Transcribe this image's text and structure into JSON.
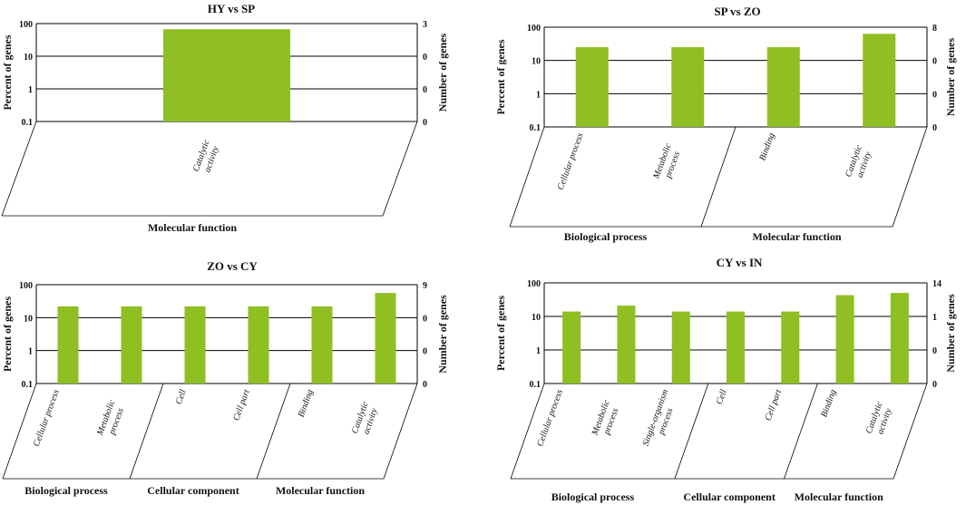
{
  "chart_data": [
    {
      "type": "bar",
      "title": "HY vs SP",
      "ylabel": "Percent of genes",
      "y2label": "Number of genes",
      "yscale": "log",
      "ylim": [
        0.1,
        100
      ],
      "yticks": [
        "100",
        "10",
        "1",
        "0.1"
      ],
      "y2ticks": [
        "3",
        "0",
        "0",
        "0"
      ],
      "grid": true,
      "categories": [
        "Catalytic activity"
      ],
      "values": [
        67
      ],
      "groups": [
        {
          "name": "Molecular function",
          "count": 1
        }
      ]
    },
    {
      "type": "bar",
      "title": "SP vs ZO",
      "ylabel": "Percent of genes",
      "y2label": "Number of genes",
      "yscale": "log",
      "ylim": [
        0.1,
        100
      ],
      "yticks": [
        "100",
        "10",
        "1",
        "0.1"
      ],
      "y2ticks": [
        "8",
        "0",
        "0",
        "0"
      ],
      "grid": true,
      "categories": [
        "Cellular process",
        "Metabolic process",
        "Binding",
        "Catalytic activity"
      ],
      "values": [
        25,
        25,
        25,
        63
      ],
      "groups": [
        {
          "name": "Biological process",
          "count": 2
        },
        {
          "name": "Molecular function",
          "count": 2
        }
      ]
    },
    {
      "type": "bar",
      "title": "ZO vs CY",
      "ylabel": "Percent of genes",
      "y2label": "Number of genes",
      "yscale": "log",
      "ylim": [
        0.1,
        100
      ],
      "yticks": [
        "100",
        "10",
        "1",
        "0.1"
      ],
      "y2ticks": [
        "9",
        "0",
        "0",
        "0"
      ],
      "grid": true,
      "categories": [
        "Cellular process",
        "Metabolic process",
        "Cell",
        "Cell part",
        "Binding",
        "Catalytic activity"
      ],
      "values": [
        22,
        22,
        22,
        22,
        22,
        56
      ],
      "groups": [
        {
          "name": "Biological process",
          "count": 2
        },
        {
          "name": "Cellular component",
          "count": 2
        },
        {
          "name": "Molecular function",
          "count": 2
        }
      ]
    },
    {
      "type": "bar",
      "title": "CY vs IN",
      "ylabel": "Percent of genes",
      "y2label": "Number of genes",
      "yscale": "log",
      "ylim": [
        0.1,
        100
      ],
      "yticks": [
        "100",
        "10",
        "1",
        "0.1"
      ],
      "y2ticks": [
        "14",
        "1",
        "0",
        "0"
      ],
      "grid": true,
      "categories": [
        "Cellular process",
        "Metabolic process",
        "Single-organism process",
        "Cell",
        "Cell part",
        "Binding",
        "Catalytic activity"
      ],
      "values": [
        14,
        21,
        14,
        14,
        14,
        43,
        50
      ],
      "groups": [
        {
          "name": "Biological process",
          "count": 3
        },
        {
          "name": "Cellular component",
          "count": 2
        },
        {
          "name": "Molecular function",
          "count": 2
        }
      ]
    }
  ]
}
